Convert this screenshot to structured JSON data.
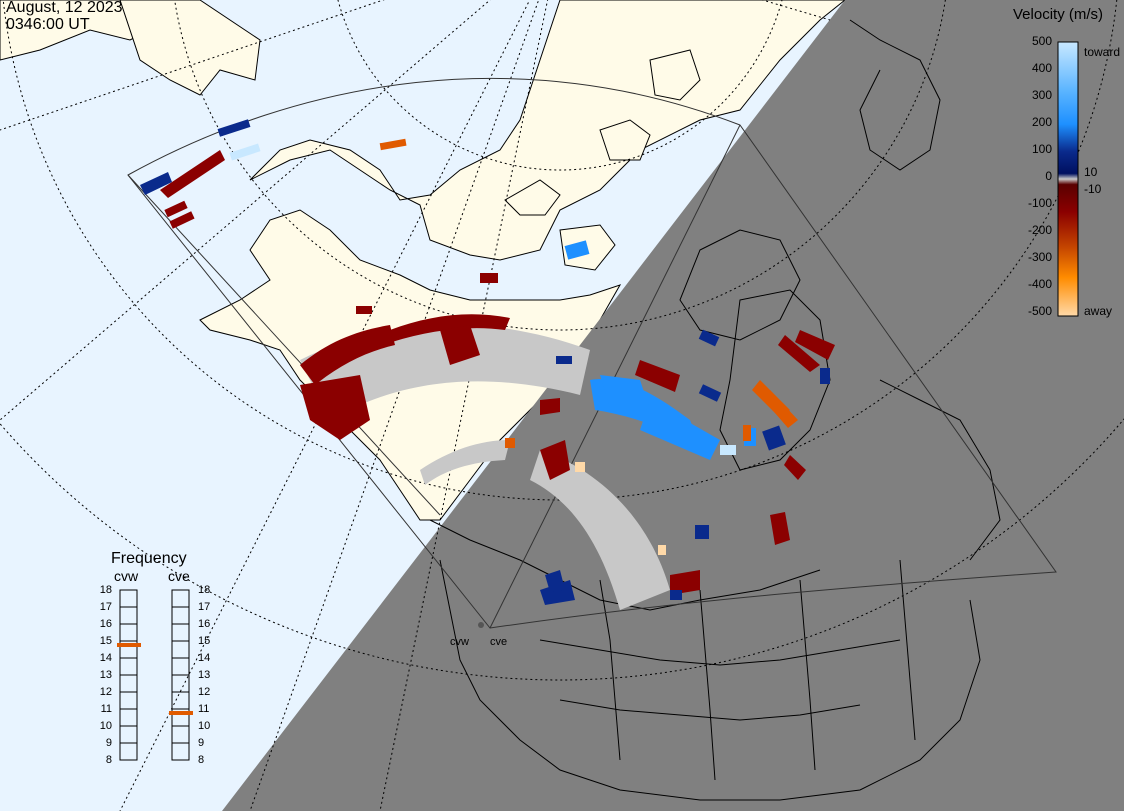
{
  "header": {
    "date": "August, 12 2023",
    "time": "0346:00 UT"
  },
  "velocity_scale": {
    "title": "Velocity (m/s)",
    "ticks": [
      "500",
      "400",
      "300",
      "200",
      "100",
      "0",
      "-100",
      "-200",
      "-300",
      "-400",
      "-500"
    ],
    "inner_labels": [
      "10",
      "-10"
    ],
    "end_labels": [
      "toward",
      "away"
    ],
    "colors": {
      "toward_light": "#c8e8ff",
      "toward_mid": "#1e90ff",
      "toward_dark": "#0a2a8c",
      "away_dark": "#8b0000",
      "away_mid": "#e05a00",
      "away_light": "#ffd9a8",
      "ground_scatter": "#c8c8c8"
    }
  },
  "frequency": {
    "title": "Frequency",
    "radars": [
      {
        "name": "cvw",
        "value_mhz": 15
      },
      {
        "name": "cve",
        "value_mhz": 11
      }
    ],
    "ticks": [
      "18",
      "17",
      "16",
      "15",
      "14",
      "13",
      "12",
      "11",
      "10",
      "9",
      "8"
    ]
  },
  "stations": [
    "cvw",
    "cve"
  ],
  "map": {
    "colors": {
      "ocean_day": "#e8f4ff",
      "land_day": "#fffbe8",
      "night": "#808080",
      "coast": "#000000"
    }
  }
}
